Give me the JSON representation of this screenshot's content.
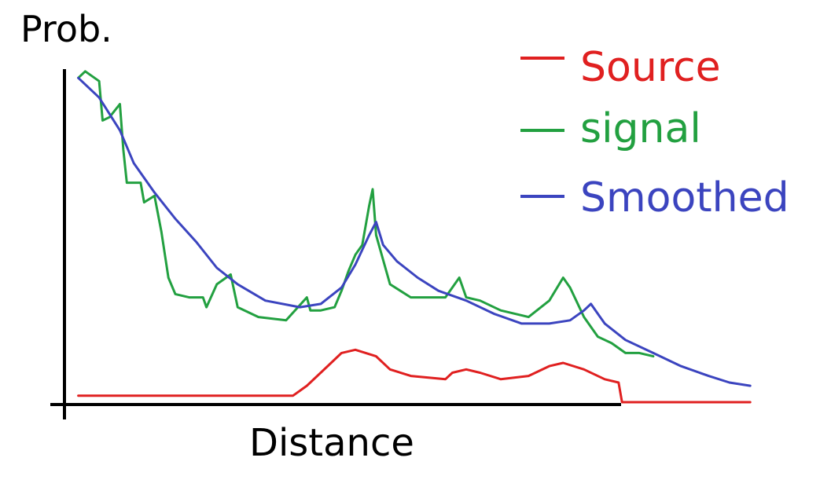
{
  "chart_data": {
    "type": "line",
    "title": "",
    "xlabel": "Distance",
    "ylabel": "Prob.",
    "grid": false,
    "legend_position": "top-right",
    "xlim": [
      0,
      100
    ],
    "ylim": [
      0,
      100
    ],
    "series": [
      {
        "name": "Source",
        "color": "#e02020",
        "points": [
          [
            2,
            2
          ],
          [
            33,
            2
          ],
          [
            35,
            5
          ],
          [
            38,
            11
          ],
          [
            40,
            15
          ],
          [
            42,
            16
          ],
          [
            45,
            14
          ],
          [
            47,
            10
          ],
          [
            50,
            8
          ],
          [
            55,
            7
          ],
          [
            56,
            9
          ],
          [
            58,
            10
          ],
          [
            60,
            9
          ],
          [
            63,
            7
          ],
          [
            67,
            8
          ],
          [
            70,
            11
          ],
          [
            72,
            12
          ],
          [
            75,
            10
          ],
          [
            78,
            7
          ],
          [
            80,
            6
          ],
          [
            80.5,
            0
          ],
          [
            99,
            0
          ]
        ]
      },
      {
        "name": "signal",
        "color": "#22a040",
        "points": [
          [
            2,
            99
          ],
          [
            3,
            101
          ],
          [
            5,
            98
          ],
          [
            5.5,
            86
          ],
          [
            6.5,
            87
          ],
          [
            8,
            91
          ],
          [
            8.5,
            77
          ],
          [
            9,
            67
          ],
          [
            11,
            67
          ],
          [
            11.5,
            61
          ],
          [
            13,
            63
          ],
          [
            14,
            52
          ],
          [
            15,
            38
          ],
          [
            16,
            33
          ],
          [
            18,
            32
          ],
          [
            20,
            32
          ],
          [
            20.5,
            29
          ],
          [
            22,
            36
          ],
          [
            24,
            39
          ],
          [
            25,
            29
          ],
          [
            28,
            26
          ],
          [
            32,
            25
          ],
          [
            35,
            32
          ],
          [
            35.5,
            28
          ],
          [
            37,
            28
          ],
          [
            39,
            29
          ],
          [
            40,
            34
          ],
          [
            41,
            40
          ],
          [
            42,
            45
          ],
          [
            43,
            48
          ],
          [
            44,
            60
          ],
          [
            44.5,
            65
          ],
          [
            45,
            51
          ],
          [
            47,
            36
          ],
          [
            50,
            32
          ],
          [
            55,
            32
          ],
          [
            57,
            38
          ],
          [
            58,
            32
          ],
          [
            60,
            31
          ],
          [
            63,
            28
          ],
          [
            67,
            26
          ],
          [
            70,
            31
          ],
          [
            72,
            38
          ],
          [
            73,
            35
          ],
          [
            75,
            26
          ],
          [
            77,
            20
          ],
          [
            79,
            18
          ],
          [
            81,
            15
          ],
          [
            83,
            15
          ],
          [
            85,
            14
          ]
        ]
      },
      {
        "name": "Smoothed",
        "color": "#3b44bf",
        "points": [
          [
            2,
            99
          ],
          [
            5,
            93
          ],
          [
            8,
            83
          ],
          [
            10,
            73
          ],
          [
            13,
            64
          ],
          [
            16,
            56
          ],
          [
            19,
            49
          ],
          [
            22,
            41
          ],
          [
            25,
            36
          ],
          [
            29,
            31
          ],
          [
            34,
            29
          ],
          [
            37,
            30
          ],
          [
            40,
            35
          ],
          [
            42,
            42
          ],
          [
            44,
            51
          ],
          [
            45,
            55
          ],
          [
            46,
            48
          ],
          [
            48,
            43
          ],
          [
            51,
            38
          ],
          [
            54,
            34
          ],
          [
            58,
            31
          ],
          [
            62,
            27
          ],
          [
            66,
            24
          ],
          [
            70,
            24
          ],
          [
            73,
            25
          ],
          [
            75,
            28
          ],
          [
            76,
            30
          ],
          [
            78,
            24
          ],
          [
            81,
            19
          ],
          [
            85,
            15
          ],
          [
            89,
            11
          ],
          [
            93,
            8
          ],
          [
            96,
            6
          ],
          [
            99,
            5
          ]
        ]
      }
    ]
  }
}
